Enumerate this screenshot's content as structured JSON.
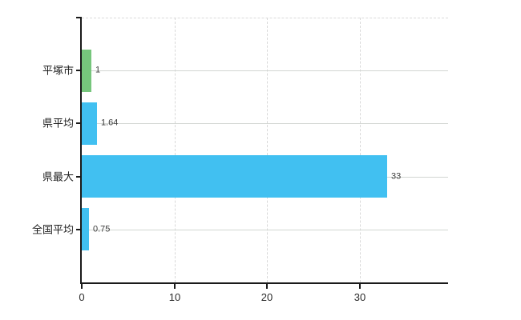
{
  "chart_data": {
    "type": "bar",
    "orientation": "horizontal",
    "title": "",
    "xlabel": "",
    "ylabel": "",
    "legend": "none",
    "categories": [
      "平塚市",
      "県平均",
      "県最大",
      "全国平均"
    ],
    "values": [
      1,
      1.64,
      33,
      0.75
    ],
    "value_labels": [
      "1",
      "1.64",
      "33",
      "0.75"
    ],
    "bar_colors": [
      "#76c67c",
      "#41c0f1",
      "#41c0f1",
      "#41c0f1"
    ],
    "x_ticks": [
      0,
      10,
      20,
      30
    ],
    "x_tick_labels": [
      "0",
      "10",
      "20",
      "30"
    ],
    "xlim": [
      0,
      39.56
    ],
    "grid": {
      "vertical": "dashed",
      "horizontal_category_lines": true,
      "top_border": "dashed"
    },
    "colors": {
      "background": "#ffffff",
      "axis": "#1a1a1a",
      "gridline_vertical": "#d9d9d9",
      "gridline_horizontal": "#d2d6d2",
      "category_label": "#1e1e1e",
      "value_label": "#3c3c3c",
      "tick_label": "#2b2b2b"
    }
  }
}
